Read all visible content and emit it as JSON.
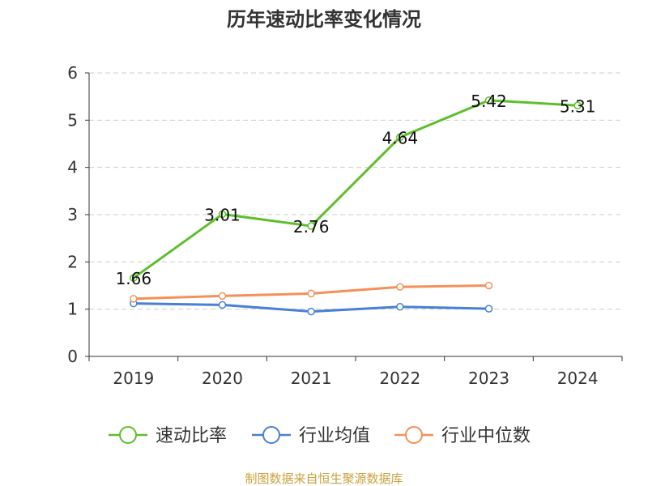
{
  "source": "制图数据来自恒生聚源数据库",
  "chart_data": {
    "type": "line",
    "title": "历年速动比率变化情况",
    "xlabel": "",
    "ylabel": "",
    "categories": [
      "2019",
      "2020",
      "2021",
      "2022",
      "2023",
      "2024"
    ],
    "ylim": [
      0,
      6
    ],
    "yticks": [
      "0",
      "1",
      "2",
      "3",
      "4",
      "5",
      "6"
    ],
    "grid": true,
    "legend_position": "bottom",
    "series": [
      {
        "name": "速动比率",
        "color": "#5cbf2a",
        "values": [
          1.66,
          3.01,
          2.76,
          4.64,
          5.42,
          5.31
        ],
        "labels": [
          "1.66",
          "3.01",
          "2.76",
          "4.64",
          "5.42",
          "5.31"
        ]
      },
      {
        "name": "行业均值",
        "color": "#4a7fd6",
        "values": [
          1.12,
          1.09,
          0.95,
          1.05,
          1.01,
          null
        ]
      },
      {
        "name": "行业中位数",
        "color": "#f59058",
        "values": [
          1.22,
          1.28,
          1.33,
          1.47,
          1.5,
          null
        ]
      }
    ]
  }
}
